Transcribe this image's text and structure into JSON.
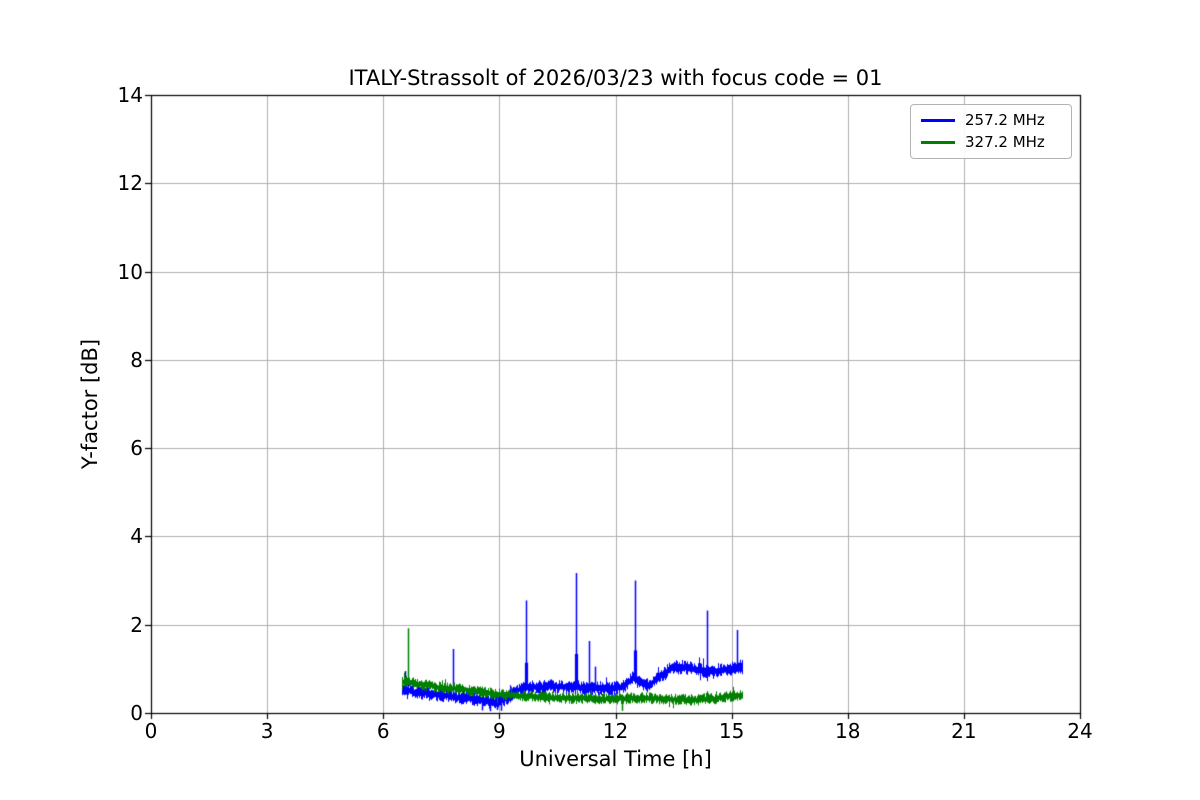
{
  "figure": {
    "background": "#ffffff",
    "spine_color": "#000000",
    "text_color": "#000000"
  },
  "chart_data": {
    "type": "line",
    "title": "ITALY-Strassolt of 2026/03/23 with focus code = 01",
    "xlabel": "Universal Time [h]",
    "ylabel": "Y-factor [dB]",
    "xlim": [
      0,
      24
    ],
    "ylim": [
      0,
      14
    ],
    "xticks": [
      0,
      3,
      6,
      9,
      12,
      15,
      18,
      21,
      24
    ],
    "yticks": [
      0,
      2,
      4,
      6,
      8,
      10,
      12,
      14
    ],
    "grid": true,
    "grid_color": "#b0b0b0",
    "legend": {
      "location": "upper right"
    },
    "series": [
      {
        "name": "257.2 MHz",
        "color": "#0000ff",
        "x_start": 6.48,
        "x_end": 15.27,
        "noise_amp": 0.15,
        "baseline": [
          [
            6.48,
            0.55
          ],
          [
            6.8,
            0.5
          ],
          [
            7.3,
            0.45
          ],
          [
            7.9,
            0.38
          ],
          [
            8.4,
            0.3
          ],
          [
            8.9,
            0.24
          ],
          [
            9.2,
            0.32
          ],
          [
            9.55,
            0.52
          ],
          [
            9.9,
            0.55
          ],
          [
            10.3,
            0.6
          ],
          [
            10.7,
            0.55
          ],
          [
            11.1,
            0.55
          ],
          [
            11.5,
            0.52
          ],
          [
            11.9,
            0.55
          ],
          [
            12.2,
            0.6
          ],
          [
            12.45,
            0.78
          ],
          [
            12.6,
            0.68
          ],
          [
            12.85,
            0.62
          ],
          [
            13.1,
            0.78
          ],
          [
            13.4,
            0.97
          ],
          [
            13.7,
            1.02
          ],
          [
            14.0,
            1.0
          ],
          [
            14.4,
            0.95
          ],
          [
            14.8,
            1.0
          ],
          [
            15.1,
            1.05
          ],
          [
            15.27,
            1.08
          ]
        ],
        "spikes": [
          [
            6.56,
            0.95
          ],
          [
            7.8,
            1.45
          ],
          [
            9.69,
            2.55
          ],
          [
            10.98,
            3.17
          ],
          [
            11.32,
            1.63
          ],
          [
            11.46,
            1.05
          ],
          [
            12.51,
            3.0
          ],
          [
            14.36,
            2.32
          ],
          [
            15.14,
            1.88
          ],
          [
            8.55,
            0.06
          ],
          [
            8.75,
            0.04
          ],
          [
            8.95,
            0.07
          ],
          [
            9.05,
            0.05
          ]
        ]
      },
      {
        "name": "327.2 MHz",
        "color": "#008000",
        "x_start": 6.48,
        "x_end": 15.27,
        "noise_amp": 0.12,
        "baseline": [
          [
            6.48,
            0.7
          ],
          [
            7.0,
            0.65
          ],
          [
            7.5,
            0.6
          ],
          [
            8.0,
            0.56
          ],
          [
            8.5,
            0.51
          ],
          [
            9.0,
            0.46
          ],
          [
            9.5,
            0.42
          ],
          [
            10.0,
            0.4
          ],
          [
            10.5,
            0.37
          ],
          [
            11.0,
            0.35
          ],
          [
            11.5,
            0.33
          ],
          [
            12.0,
            0.32
          ],
          [
            12.5,
            0.31
          ],
          [
            13.0,
            0.3
          ],
          [
            13.5,
            0.29
          ],
          [
            14.0,
            0.3
          ],
          [
            14.5,
            0.32
          ],
          [
            15.0,
            0.37
          ],
          [
            15.27,
            0.4
          ]
        ],
        "spikes": [
          [
            6.64,
            1.92
          ],
          [
            12.17,
            0.05
          ]
        ]
      }
    ]
  }
}
